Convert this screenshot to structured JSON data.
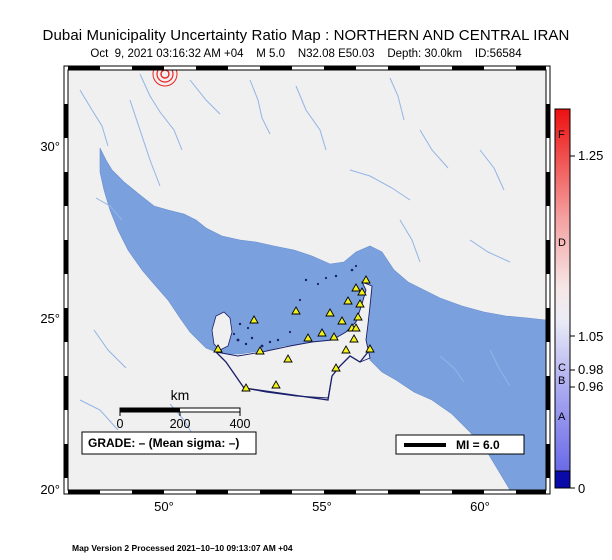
{
  "map": {
    "title": "Dubai Municipality Uncertainty Ratio Map : NORTHERN AND CENTRAL IRAN",
    "event": {
      "datetime": "Oct  9, 2021 03:16:32 AM +04",
      "magnitude": "M 5.0",
      "location": "N32.08 E50.03",
      "depth": "Depth: 30.0km",
      "id": "ID:56584"
    },
    "lat_labels": [
      "30°",
      "25°",
      "20°"
    ],
    "lon_labels": [
      "50°",
      "55°",
      "60°"
    ],
    "scale_bar": {
      "unit": "km",
      "ticks": [
        "0",
        "200",
        "400"
      ]
    },
    "grade_box": "GRADE: – (Mean sigma: –)",
    "mi_legend": "MI = 6.0",
    "colorbar": {
      "letters": [
        "F",
        "D",
        "C",
        "B",
        "A"
      ],
      "values": [
        "1.25",
        "1.05",
        "0.98",
        "0.96",
        "0"
      ]
    },
    "footer": "Map Version 2 Processed 2021–10–10 09:13:07 AM +04",
    "colors": {
      "sea": "#7aa0dd",
      "land": "#f0f0f0",
      "rivers": "#93b4e6",
      "border": "#1a1f6a",
      "station": "#f2f21a",
      "epicenter": "#ee2222"
    }
  }
}
